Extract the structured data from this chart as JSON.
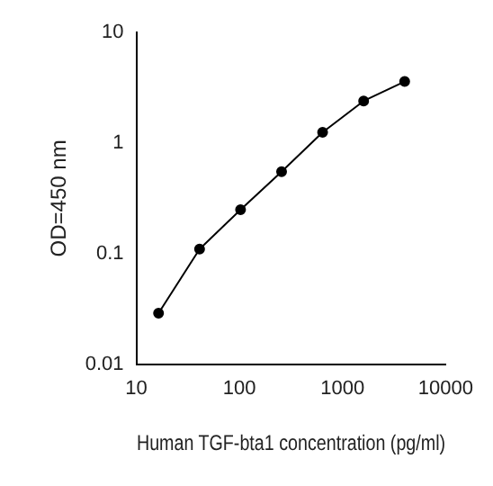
{
  "chart_data": {
    "type": "line",
    "xlabel": "Human TGF-bta1 concentration (pg/ml)",
    "ylabel": "OD=450 nm",
    "x": [
      16.4,
      41,
      102.4,
      256,
      640,
      1600,
      4000
    ],
    "series": [
      {
        "color": "#000000",
        "values": [
          0.029,
          0.11,
          0.25,
          0.55,
          1.25,
          2.4,
          3.6
        ]
      }
    ],
    "log": "xy",
    "xlim": [
      10,
      10000
    ],
    "ylim": [
      0.01,
      10
    ],
    "xticks": [
      10,
      100,
      1000,
      10000
    ],
    "yticks": [
      0.01,
      0.1,
      1,
      10
    ],
    "grid": false,
    "legend": false,
    "marker": "circle",
    "line_style": "solid"
  }
}
